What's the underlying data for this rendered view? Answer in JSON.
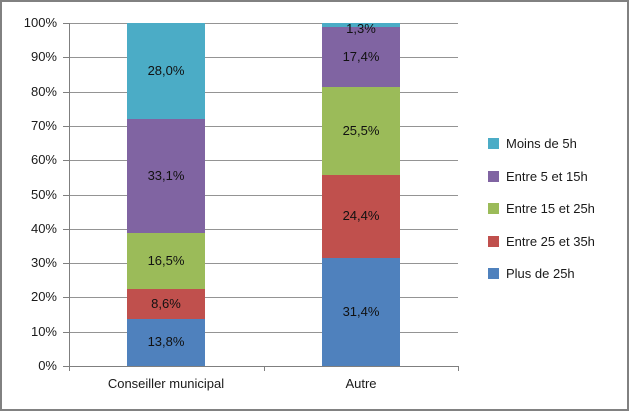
{
  "chart": {
    "background": "#FFFFFF",
    "border_color": "#818181",
    "grid_color": "#949494",
    "axis_color": "#7F7F7F",
    "text_color": "#1A1A1A"
  },
  "chart_data": {
    "type": "bar",
    "stacked": true,
    "units": "percent",
    "grid": true,
    "legend_position": "right",
    "ylim": [
      0,
      100
    ],
    "y_ticks": [
      "0%",
      "10%",
      "20%",
      "30%",
      "40%",
      "50%",
      "60%",
      "70%",
      "80%",
      "90%",
      "100%"
    ],
    "categories": [
      "Conseiller municipal",
      "Autre"
    ],
    "series": [
      {
        "name": "Plus de 25h",
        "color": "#4F81BD",
        "values": [
          13.8,
          31.4
        ],
        "labels": [
          "13,8%",
          "31,4%"
        ]
      },
      {
        "name": "Entre 25 et 35h",
        "color": "#C0504D",
        "values": [
          8.6,
          24.4
        ],
        "labels": [
          "8,6%",
          "24,4%"
        ]
      },
      {
        "name": "Entre 15 et 25h",
        "color": "#9BBB59",
        "values": [
          16.5,
          25.5
        ],
        "labels": [
          "16,5%",
          "25,5%"
        ]
      },
      {
        "name": "Entre 5 et 15h",
        "color": "#8064A2",
        "values": [
          33.1,
          17.4
        ],
        "labels": [
          "33,1%",
          "17,4%"
        ]
      },
      {
        "name": "Moins de 5h",
        "color": "#4BACC6",
        "values": [
          28.0,
          1.3
        ],
        "labels": [
          "28,0%",
          "1,3%"
        ]
      }
    ],
    "legend": [
      {
        "label": "Moins de 5h",
        "color": "#4BACC6"
      },
      {
        "label": "Entre 5 et 15h",
        "color": "#8064A2"
      },
      {
        "label": "Entre 15 et 25h",
        "color": "#9BBB59"
      },
      {
        "label": "Entre 25 et 35h",
        "color": "#C0504D"
      },
      {
        "label": "Plus de 25h",
        "color": "#4F81BD"
      }
    ]
  }
}
